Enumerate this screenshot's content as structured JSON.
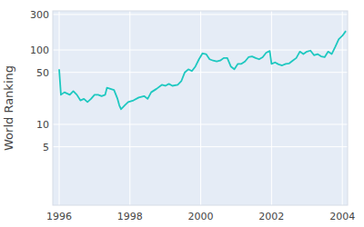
{
  "chart_data": {
    "type": "line",
    "y_label": "World Ranking",
    "x": [
      1996.0,
      1996.05,
      1996.15,
      1996.3,
      1996.4,
      1996.5,
      1996.6,
      1996.7,
      1996.8,
      1996.9,
      1997.0,
      1997.1,
      1997.2,
      1997.3,
      1997.35,
      1997.45,
      1997.55,
      1997.65,
      1997.7,
      1997.75,
      1997.85,
      1997.95,
      1998.1,
      1998.25,
      1998.4,
      1998.5,
      1998.6,
      1998.75,
      1998.9,
      1999.0,
      1999.1,
      1999.2,
      1999.35,
      1999.45,
      1999.55,
      1999.65,
      1999.75,
      1999.85,
      1999.95,
      2000.05,
      2000.15,
      2000.25,
      2000.35,
      2000.45,
      2000.55,
      2000.65,
      2000.75,
      2000.85,
      2000.95,
      2001.05,
      2001.15,
      2001.25,
      2001.35,
      2001.45,
      2001.55,
      2001.65,
      2001.75,
      2001.85,
      2001.95,
      2002.0,
      2002.1,
      2002.2,
      2002.3,
      2002.4,
      2002.5,
      2002.6,
      2002.7,
      2002.8,
      2002.9,
      2003.0,
      2003.1,
      2003.2,
      2003.3,
      2003.4,
      2003.5,
      2003.6,
      2003.7,
      2003.8,
      2003.9,
      2004.0,
      2004.1
    ],
    "values": [
      55,
      25,
      27,
      25,
      28,
      25,
      21,
      22,
      20,
      22,
      25,
      25,
      24,
      25,
      31,
      30,
      29,
      22,
      18,
      16,
      18,
      20,
      21,
      23,
      24,
      22,
      27,
      30,
      34,
      33,
      35,
      33,
      34,
      38,
      50,
      55,
      52,
      60,
      75,
      90,
      88,
      75,
      72,
      70,
      72,
      78,
      78,
      60,
      55,
      65,
      65,
      70,
      80,
      82,
      78,
      75,
      80,
      92,
      97,
      65,
      68,
      64,
      62,
      65,
      66,
      72,
      78,
      95,
      88,
      95,
      98,
      85,
      88,
      82,
      80,
      95,
      88,
      110,
      140,
      155,
      180
    ],
    "color": "#1ec8c0",
    "xlim": [
      1995.82,
      2004.15
    ],
    "xticks": [
      1996,
      1998,
      2000,
      2002,
      2004
    ],
    "ylim": [
      0.82,
      335
    ],
    "yticks": [
      5,
      10,
      50,
      100,
      300
    ],
    "log": "y",
    "grid": true
  }
}
